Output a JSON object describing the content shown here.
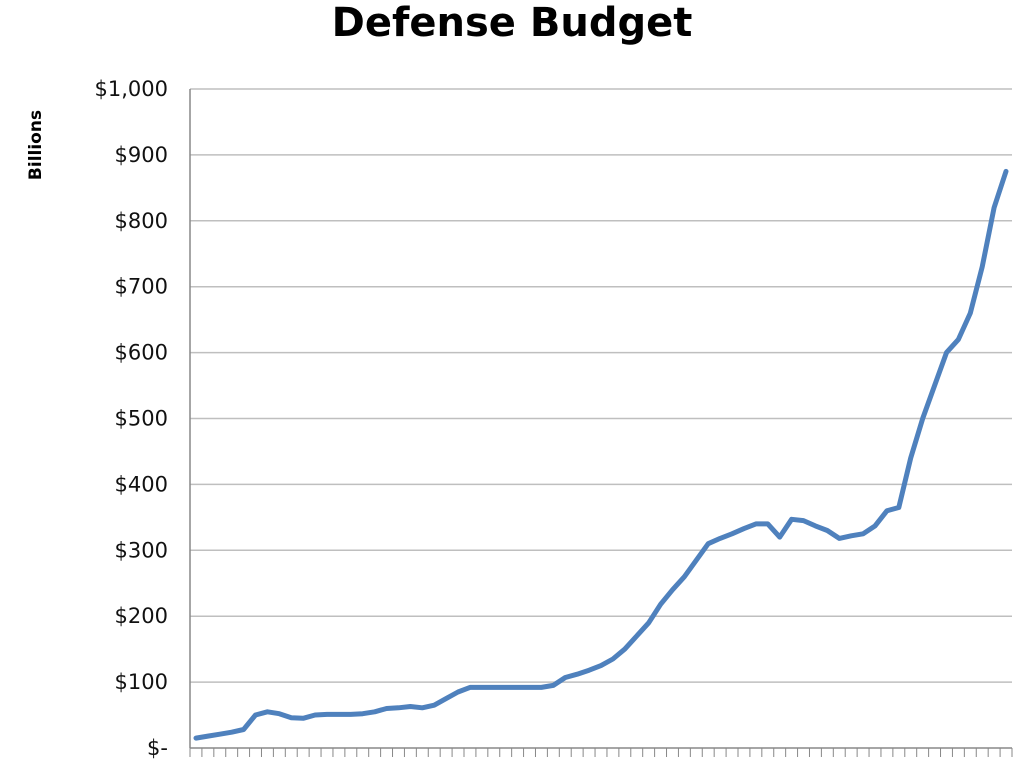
{
  "chart_data": {
    "type": "line",
    "title": "Defense Budget",
    "xlabel": "",
    "ylabel": "Billions",
    "ylim": [
      0,
      1000
    ],
    "yticks": [
      {
        "value": 0,
        "label": "$-"
      },
      {
        "value": 100,
        "label": "$100"
      },
      {
        "value": 200,
        "label": "$200"
      },
      {
        "value": 300,
        "label": "$300"
      },
      {
        "value": 400,
        "label": "$400"
      },
      {
        "value": 500,
        "label": "$500"
      },
      {
        "value": 600,
        "label": "$600"
      },
      {
        "value": 700,
        "label": "$700"
      },
      {
        "value": 800,
        "label": "$800"
      },
      {
        "value": 900,
        "label": "$900"
      },
      {
        "value": 1000,
        "label": "$1,000"
      }
    ],
    "x_tick_labels_shown": false,
    "grid": "horizontal",
    "line_color": "#4f81bd",
    "gridline_color": "#bfbfbf",
    "series": [
      {
        "values": [
          15,
          18,
          21,
          24,
          28,
          50,
          55,
          52,
          46,
          45,
          50,
          51,
          51,
          51,
          52,
          55,
          60,
          61,
          63,
          61,
          65,
          75,
          85,
          92,
          92,
          92,
          92,
          92,
          92,
          92,
          95,
          107,
          112,
          118,
          125,
          135,
          150,
          170,
          190,
          218,
          240,
          260,
          285,
          310,
          318,
          325,
          333,
          340,
          340,
          320,
          347,
          345,
          337,
          330,
          318,
          322,
          325,
          337,
          360,
          365,
          440,
          500,
          550,
          600,
          620,
          660,
          730,
          820,
          875
        ]
      }
    ]
  }
}
